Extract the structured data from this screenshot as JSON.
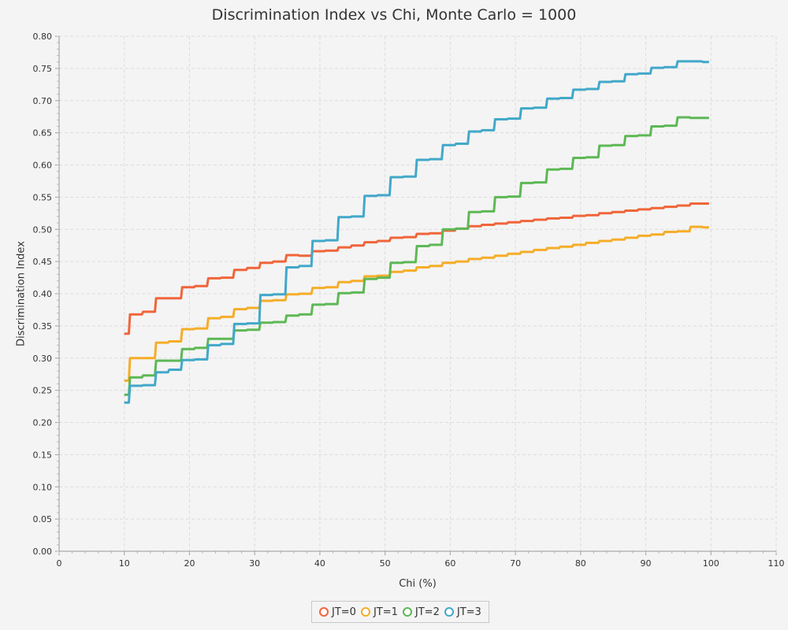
{
  "chart_data": {
    "type": "line",
    "title": "Discrimination Index vs Chi, Monte Carlo = 1000",
    "xlabel": "Chi (%)",
    "ylabel": "Discrimination Index",
    "xlim": [
      0,
      110
    ],
    "ylim": [
      0,
      0.8
    ],
    "x_ticks": [
      "0",
      "10",
      "20",
      "30",
      "40",
      "50",
      "60",
      "70",
      "80",
      "90",
      "100",
      "110"
    ],
    "y_ticks": [
      "0.00",
      "0.05",
      "0.10",
      "0.15",
      "0.20",
      "0.25",
      "0.30",
      "0.35",
      "0.40",
      "0.45",
      "0.50",
      "0.55",
      "0.60",
      "0.65",
      "0.70",
      "0.75",
      "0.80"
    ],
    "grid": true,
    "legend_position": "bottom-center",
    "series": [
      {
        "name": "JT=0",
        "color": "#f0653a",
        "x": [
          10,
          12,
          14,
          16,
          18,
          20,
          22,
          24,
          26,
          28,
          30,
          32,
          34,
          36,
          38,
          40,
          42,
          44,
          46,
          48,
          50,
          52,
          54,
          56,
          58,
          60,
          62,
          64,
          66,
          68,
          70,
          72,
          74,
          76,
          78,
          80,
          82,
          84,
          86,
          88,
          90,
          92,
          94,
          96,
          98,
          99.7
        ],
        "y": [
          0.338,
          0.368,
          0.372,
          0.393,
          0.393,
          0.41,
          0.412,
          0.424,
          0.425,
          0.437,
          0.44,
          0.448,
          0.45,
          0.46,
          0.459,
          0.466,
          0.467,
          0.472,
          0.475,
          0.48,
          0.482,
          0.487,
          0.488,
          0.493,
          0.494,
          0.498,
          0.501,
          0.505,
          0.507,
          0.509,
          0.511,
          0.513,
          0.515,
          0.517,
          0.518,
          0.521,
          0.522,
          0.525,
          0.527,
          0.529,
          0.531,
          0.533,
          0.535,
          0.537,
          0.54,
          0.54
        ]
      },
      {
        "name": "JT=1",
        "color": "#f5ad28",
        "x": [
          10,
          12,
          14,
          16,
          18,
          20,
          22,
          24,
          26,
          28,
          30,
          32,
          34,
          36,
          38,
          40,
          42,
          44,
          46,
          48,
          50,
          52,
          54,
          56,
          58,
          60,
          62,
          64,
          66,
          68,
          70,
          72,
          74,
          76,
          78,
          80,
          82,
          84,
          86,
          88,
          90,
          92,
          94,
          96,
          98,
          99.7
        ],
        "y": [
          0.265,
          0.3,
          0.3,
          0.324,
          0.326,
          0.345,
          0.346,
          0.362,
          0.364,
          0.376,
          0.378,
          0.389,
          0.39,
          0.399,
          0.4,
          0.409,
          0.41,
          0.418,
          0.42,
          0.427,
          0.428,
          0.434,
          0.436,
          0.441,
          0.443,
          0.448,
          0.45,
          0.454,
          0.456,
          0.459,
          0.462,
          0.465,
          0.468,
          0.471,
          0.473,
          0.476,
          0.479,
          0.482,
          0.484,
          0.487,
          0.49,
          0.492,
          0.496,
          0.497,
          0.504,
          0.503
        ]
      },
      {
        "name": "JT=2",
        "color": "#5db855",
        "x": [
          10,
          12,
          14,
          16,
          18,
          20,
          22,
          24,
          26,
          28,
          30,
          32,
          34,
          36,
          38,
          40,
          42,
          44,
          46,
          48,
          50,
          52,
          54,
          56,
          58,
          60,
          62,
          64,
          66,
          68,
          70,
          72,
          74,
          76,
          78,
          80,
          82,
          84,
          86,
          88,
          90,
          92,
          94,
          96,
          98,
          99.7
        ],
        "y": [
          0.243,
          0.27,
          0.273,
          0.296,
          0.296,
          0.314,
          0.316,
          0.33,
          0.33,
          0.343,
          0.344,
          0.355,
          0.356,
          0.366,
          0.368,
          0.383,
          0.384,
          0.401,
          0.402,
          0.423,
          0.425,
          0.448,
          0.449,
          0.474,
          0.476,
          0.5,
          0.501,
          0.527,
          0.528,
          0.55,
          0.551,
          0.572,
          0.573,
          0.593,
          0.594,
          0.611,
          0.612,
          0.63,
          0.631,
          0.645,
          0.646,
          0.66,
          0.661,
          0.674,
          0.673,
          0.673
        ]
      },
      {
        "name": "JT=3",
        "color": "#41a8c9",
        "x": [
          10,
          12,
          14,
          16,
          18,
          20,
          22,
          24,
          26,
          28,
          30,
          32,
          34,
          36,
          38,
          40,
          42,
          44,
          46,
          48,
          50,
          52,
          54,
          56,
          58,
          60,
          62,
          64,
          66,
          68,
          70,
          72,
          74,
          76,
          78,
          80,
          82,
          84,
          86,
          88,
          90,
          92,
          94,
          96,
          98,
          99.7
        ],
        "y": [
          0.231,
          0.257,
          0.258,
          0.278,
          0.282,
          0.297,
          0.298,
          0.32,
          0.322,
          0.353,
          0.354,
          0.398,
          0.399,
          0.441,
          0.443,
          0.482,
          0.483,
          0.519,
          0.52,
          0.552,
          0.553,
          0.581,
          0.582,
          0.608,
          0.609,
          0.631,
          0.633,
          0.652,
          0.654,
          0.671,
          0.672,
          0.688,
          0.689,
          0.703,
          0.704,
          0.717,
          0.718,
          0.729,
          0.73,
          0.741,
          0.742,
          0.751,
          0.752,
          0.761,
          0.761,
          0.76
        ]
      }
    ]
  }
}
